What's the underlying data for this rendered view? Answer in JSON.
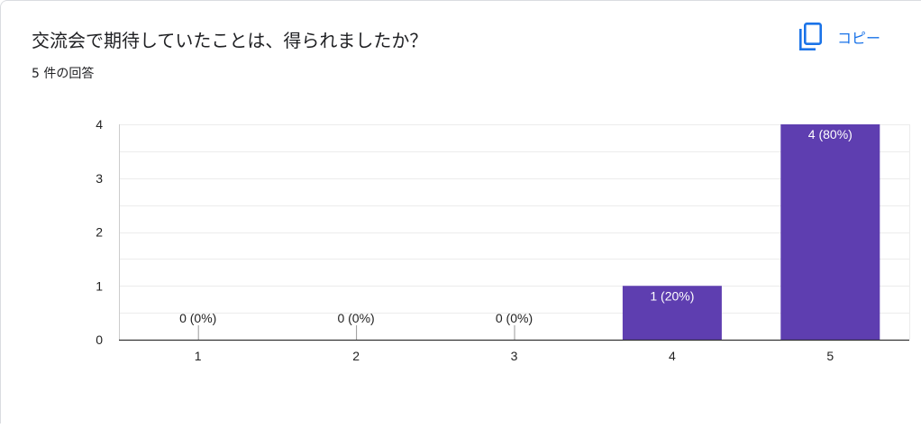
{
  "question": {
    "title": "交流会で期待していたことは、得られましたか？",
    "response_count": "5 件の回答"
  },
  "toolbar": {
    "copy_label": "コピー",
    "copy_icon": "copy-icon"
  },
  "colors": {
    "bar": "#5e3eb0",
    "grid": "#ececec",
    "axis": "#333333",
    "accent": "#1a73e8"
  },
  "chart_data": {
    "type": "bar",
    "categories": [
      "1",
      "2",
      "3",
      "4",
      "5"
    ],
    "values": [
      0,
      0,
      0,
      1,
      4
    ],
    "data_labels": [
      "0 (0%)",
      "0 (0%)",
      "0 (0%)",
      "1 (20%)",
      "4 (80%)"
    ],
    "ylim": [
      0,
      4
    ],
    "yticks": [
      0,
      1,
      2,
      3,
      4
    ],
    "title": "",
    "xlabel": "",
    "ylabel": "",
    "grid": true
  }
}
